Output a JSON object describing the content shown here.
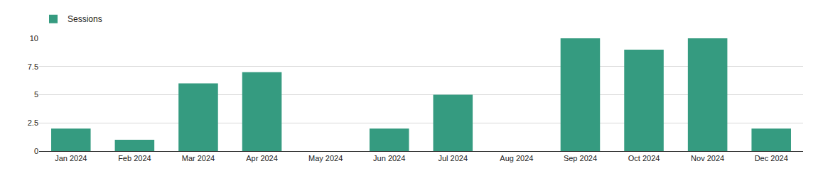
{
  "chart_data": {
    "type": "bar",
    "categories": [
      "Jan 2024",
      "Feb 2024",
      "Mar 2024",
      "Apr 2024",
      "May 2024",
      "Jun 2024",
      "Jul 2024",
      "Aug 2024",
      "Sep 2024",
      "Oct 2024",
      "Nov 2024",
      "Dec 2024"
    ],
    "series": [
      {
        "name": "Sessions",
        "color": "#359b80",
        "values": [
          2,
          1,
          6,
          7,
          0,
          2,
          5,
          0,
          10,
          9,
          10,
          2
        ]
      }
    ],
    "ylim": [
      0,
      10
    ],
    "yticks": [
      0,
      2.5,
      5,
      7.5,
      10
    ],
    "grid": true,
    "legend": "top-left"
  }
}
